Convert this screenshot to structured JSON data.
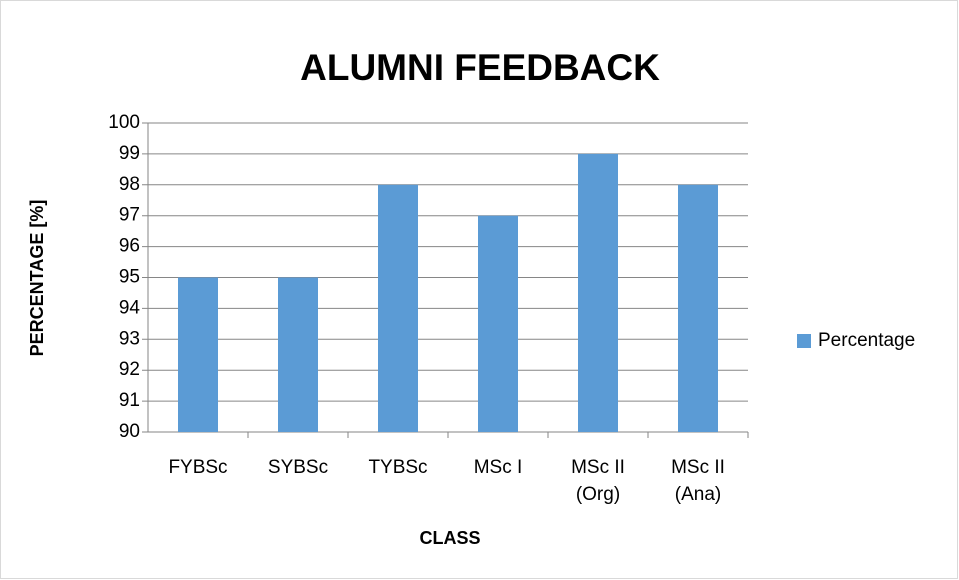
{
  "chart_data": {
    "type": "bar",
    "title": "ALUMNI FEEDBACK",
    "x_label": "CLASS",
    "y_label": "PERCENTAGE [%]",
    "categories": [
      "FYBSc",
      "SYBSc",
      "TYBSc",
      "MSc I",
      "MSc II (Org)",
      "MSc II (Ana)"
    ],
    "series": [
      {
        "name": "Percentage",
        "color": "#5b9bd5",
        "values": [
          95,
          95,
          98,
          97,
          99,
          98
        ]
      }
    ],
    "ylim": [
      90,
      100
    ],
    "yticks": [
      90,
      91,
      92,
      93,
      94,
      95,
      96,
      97,
      98,
      99,
      100
    ],
    "grid": true,
    "legend": "right"
  }
}
